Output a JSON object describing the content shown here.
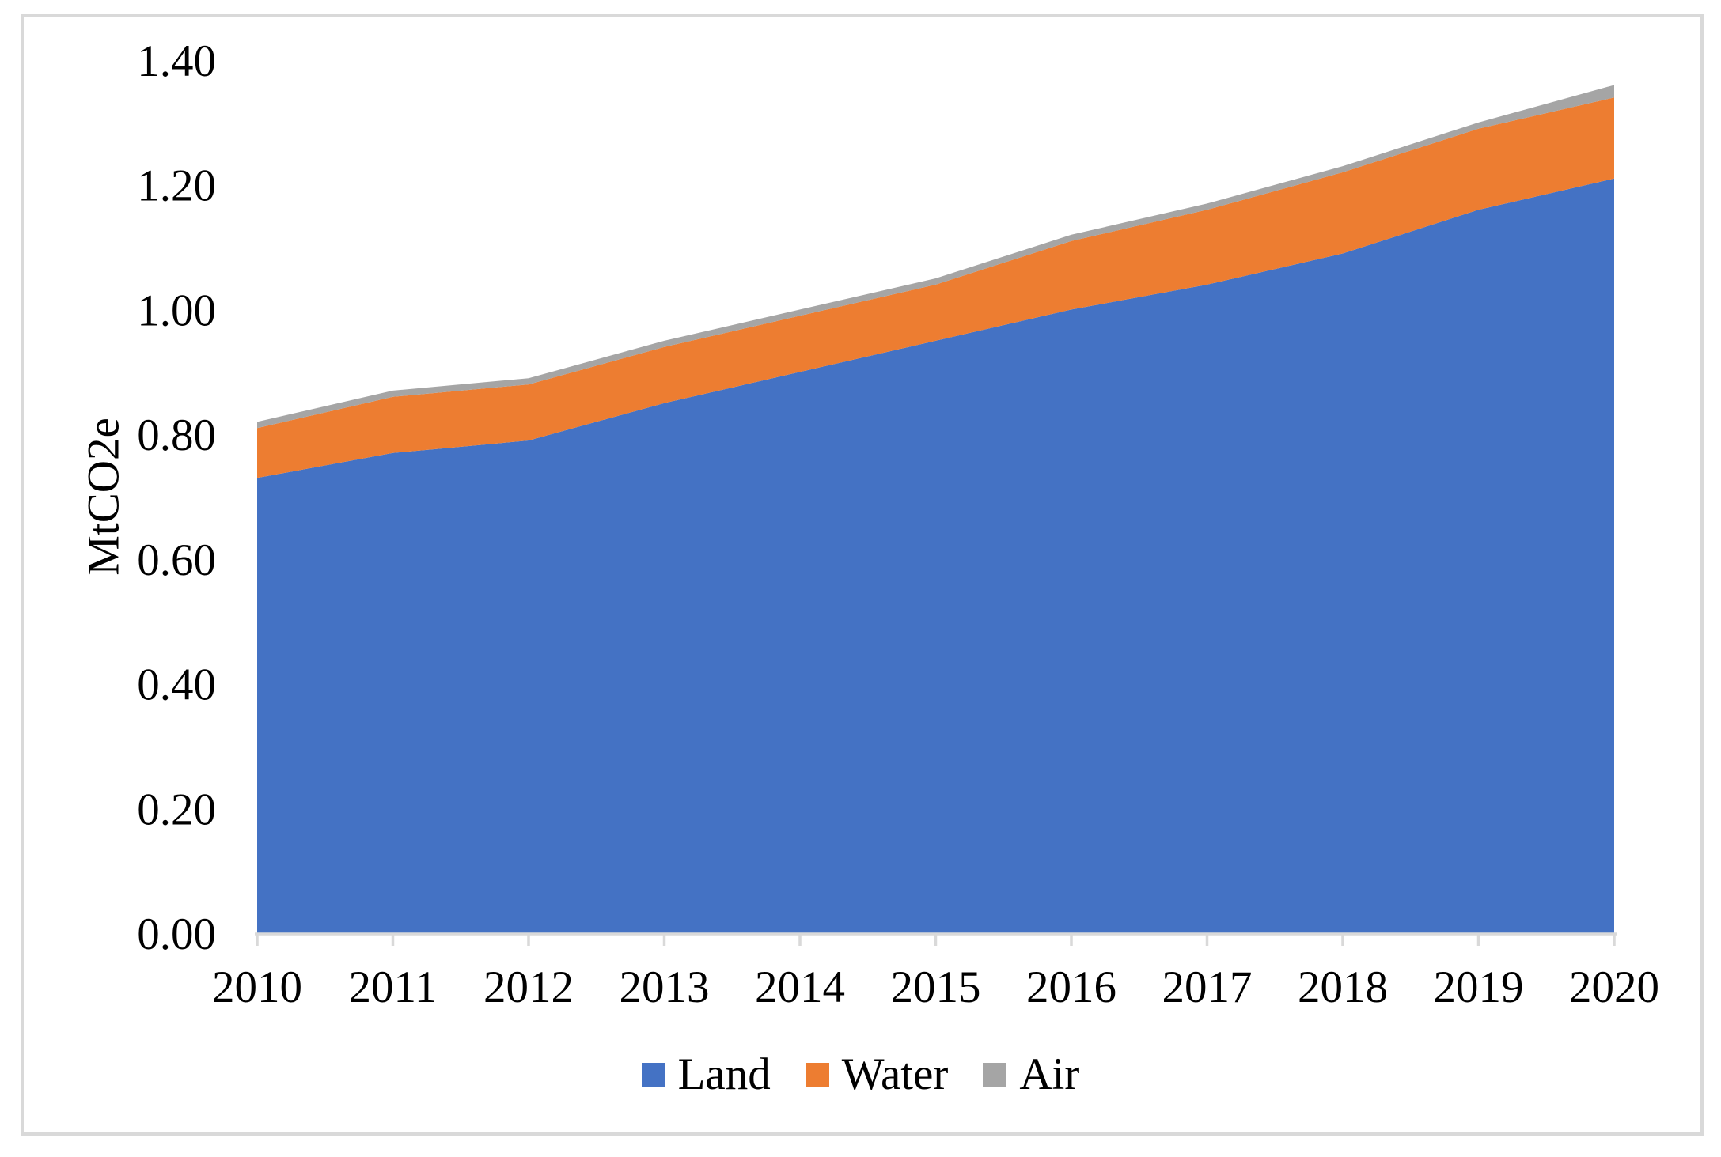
{
  "chart_data": {
    "type": "area",
    "stacked": true,
    "title": "",
    "ylabel": "MtCO2e",
    "xlabel": "",
    "categories": [
      "2010",
      "2011",
      "2012",
      "2013",
      "2014",
      "2015",
      "2016",
      "2017",
      "2018",
      "2019",
      "2020"
    ],
    "series": [
      {
        "name": "Land",
        "color": "#4472C4",
        "values": [
          0.73,
          0.77,
          0.79,
          0.85,
          0.9,
          0.95,
          1.0,
          1.04,
          1.09,
          1.16,
          1.21
        ]
      },
      {
        "name": "Water",
        "color": "#ED7D31",
        "values": [
          0.08,
          0.09,
          0.09,
          0.09,
          0.09,
          0.09,
          0.11,
          0.12,
          0.13,
          0.13,
          0.13
        ]
      },
      {
        "name": "Air",
        "color": "#A5A5A5",
        "values": [
          0.01,
          0.01,
          0.01,
          0.01,
          0.01,
          0.01,
          0.01,
          0.01,
          0.01,
          0.01,
          0.02
        ]
      }
    ],
    "totals": [
      0.82,
      0.87,
      0.89,
      0.95,
      1.0,
      1.05,
      1.12,
      1.17,
      1.23,
      1.3,
      1.36
    ],
    "y_ticks": [
      "0.00",
      "0.20",
      "0.40",
      "0.60",
      "0.80",
      "1.00",
      "1.20",
      "1.40"
    ],
    "ylim": [
      0.0,
      1.4
    ],
    "y_tick_step": 0.2,
    "grid": false,
    "legend_position": "bottom"
  },
  "colors": {
    "frame": "#D9D9D9",
    "axis": "#D9D9D9",
    "text": "#000000",
    "background": "#FFFFFF"
  }
}
